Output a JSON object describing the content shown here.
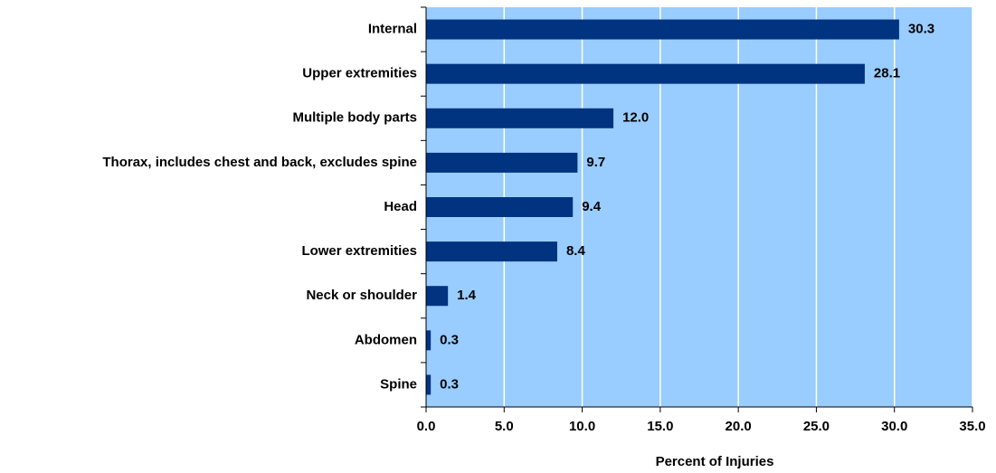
{
  "chart_data": {
    "type": "bar",
    "orientation": "horizontal",
    "x_label": "Percent of Injuries",
    "categories": [
      "Internal",
      "Upper extremities",
      "Multiple body parts",
      "Thorax, includes chest and back, excludes spine",
      "Head",
      "Lower extremities",
      "Neck or shoulder",
      "Abdomen",
      "Spine"
    ],
    "values": [
      30.3,
      28.1,
      12.0,
      9.7,
      9.4,
      8.4,
      1.4,
      0.3,
      0.3
    ],
    "value_labels": [
      "30.3",
      "28.1",
      "12.0",
      "9.7",
      "9.4",
      "8.4",
      "1.4",
      "0.3",
      "0.3"
    ],
    "color": "#003380",
    "background": "#99ccff",
    "xlim": [
      0,
      35
    ],
    "xticks": [
      {
        "value": 0,
        "label": "0.0"
      },
      {
        "value": 5,
        "label": "5.0"
      },
      {
        "value": 10,
        "label": "10.0"
      },
      {
        "value": 15,
        "label": "15.0"
      },
      {
        "value": 20,
        "label": "20.0"
      },
      {
        "value": 25,
        "label": "25.0"
      },
      {
        "value": 30,
        "label": "30.0"
      },
      {
        "value": 35,
        "label": "35.0"
      }
    ],
    "grid": true
  }
}
